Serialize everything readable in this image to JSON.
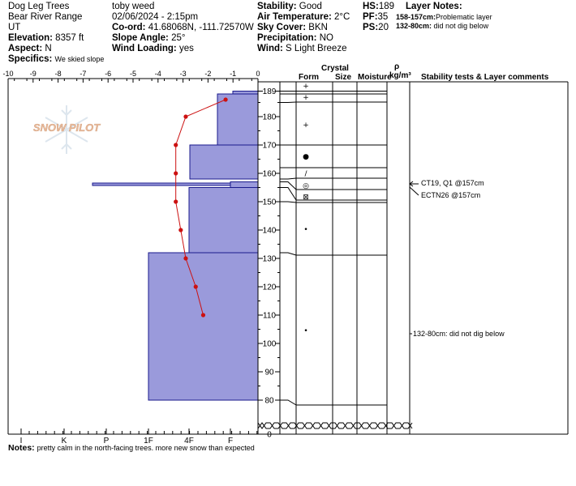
{
  "header": {
    "location": "Dog Leg Trees",
    "range": "Bear River Range",
    "state": "UT",
    "elevation_label": "Elevation:",
    "elevation_value": "8357 ft",
    "aspect_label": "Aspect:",
    "aspect_value": "N",
    "specifics_label": "Specifics:",
    "specifics_value": "We skied slope",
    "observer": "toby weed",
    "datetime": "02/06/2024 - 2:15pm",
    "coord_label": "Co-ord:",
    "coord_value": "41.68068N, -111.72570W",
    "slope_label": "Slope Angle:",
    "slope_value": "25°",
    "wind_loading_label": "Wind Loading:",
    "wind_loading_value": "yes",
    "stability_label": "Stability:",
    "stability_value": "Good",
    "air_temp_label": "Air Temperature:",
    "air_temp_value": "2°C",
    "sky_label": "Sky Cover:",
    "sky_value": "BKN",
    "precip_label": "Precipitation:",
    "precip_value": "NO",
    "wind_label": "Wind:",
    "wind_value": "S Light Breeze",
    "hs_label": "HS:",
    "hs_value": "189",
    "pf_label": "PF:",
    "pf_value": "35",
    "ps_label": "PS:",
    "ps_value": "20",
    "layer_notes_label": "Layer Notes:",
    "layer_note_1_range": "158-157cm:",
    "layer_note_1_text": "Problematic layer",
    "layer_note_2_range": "132-80cm:",
    "layer_note_2_text": "did not dig below"
  },
  "columns": {
    "crystal": "Crystal",
    "form": "Form",
    "size": "Size",
    "moisture": "Moisture",
    "rho": "ρ",
    "density_unit": "kg/m³",
    "comments": "Stability tests & Layer comments"
  },
  "notes_label": "Notes:",
  "notes_value": "pretty calm in the north-facing trees.  more new snow than expected",
  "watermark": "SNOW PILOT",
  "comments": {
    "ct": "CT19, Q1 @157cm",
    "ectn": "ECTN26 @157cm",
    "dig": "132-80cm: did not dig below"
  },
  "colors": {
    "hardness_fill": "#9a9adb",
    "hardness_stroke": "#1a1a8c",
    "temperature": "#cc1111",
    "watermark": "#e8b899"
  },
  "chart_data": {
    "type": "snow-profile",
    "temperature_axis": {
      "ticks": [
        "-10",
        "-9",
        "-8",
        "-7",
        "-6",
        "-5",
        "-4",
        "-3",
        "-2",
        "-1",
        "0"
      ],
      "range": [
        -10,
        0
      ]
    },
    "hardness_axis": {
      "ticks": [
        "I",
        "K",
        "P",
        "1F",
        "4F",
        "F"
      ]
    },
    "height_axis": {
      "ticks": [
        "189",
        "180",
        "170",
        "160",
        "150",
        "140",
        "130",
        "120",
        "110",
        "100",
        "90",
        "80",
        "0"
      ]
    },
    "hardness_layers": [
      {
        "top": 189,
        "bottom": 188,
        "hardness": "F-"
      },
      {
        "top": 188,
        "bottom": 170,
        "hardness": "F+"
      },
      {
        "top": 170,
        "bottom": 158,
        "hardness": "4F-"
      },
      {
        "top": 158,
        "bottom": 157,
        "hardness": "P"
      },
      {
        "top": 157,
        "bottom": 155,
        "hardness": "F"
      },
      {
        "top": 155,
        "bottom": 132,
        "hardness": "4F"
      },
      {
        "top": 132,
        "bottom": 80,
        "hardness": "1F"
      }
    ],
    "temperature_profile": [
      {
        "depth": 186,
        "temp": -1.3
      },
      {
        "depth": 180,
        "temp": -2.9
      },
      {
        "depth": 170,
        "temp": -3.3
      },
      {
        "depth": 160,
        "temp": -3.3
      },
      {
        "depth": 150,
        "temp": -3.3
      },
      {
        "depth": 140,
        "temp": -3.1
      },
      {
        "depth": 130,
        "temp": -2.9
      },
      {
        "depth": 120,
        "temp": -2.5
      },
      {
        "depth": 110,
        "temp": -2.2
      }
    ],
    "layer_boundaries": [
      189,
      188,
      185,
      170,
      162,
      158,
      157,
      155,
      150,
      132,
      80
    ],
    "grain_forms": [
      {
        "depth": 188,
        "symbol": "+"
      },
      {
        "depth": 186,
        "symbol": "+"
      },
      {
        "depth": 177,
        "symbol": "+"
      },
      {
        "depth": 166,
        "symbol": "●"
      },
      {
        "depth": 160,
        "symbol": "/"
      },
      {
        "depth": 156,
        "symbol": "◎"
      },
      {
        "depth": 152,
        "symbol": "⊠"
      },
      {
        "depth": 141,
        "symbol": "•"
      },
      {
        "depth": 106,
        "symbol": "•"
      }
    ],
    "stability_tests": [
      {
        "depth": 157,
        "result": "CT19, Q1 @157cm"
      },
      {
        "depth": 157,
        "result": "ECTN26 @157cm"
      }
    ]
  }
}
